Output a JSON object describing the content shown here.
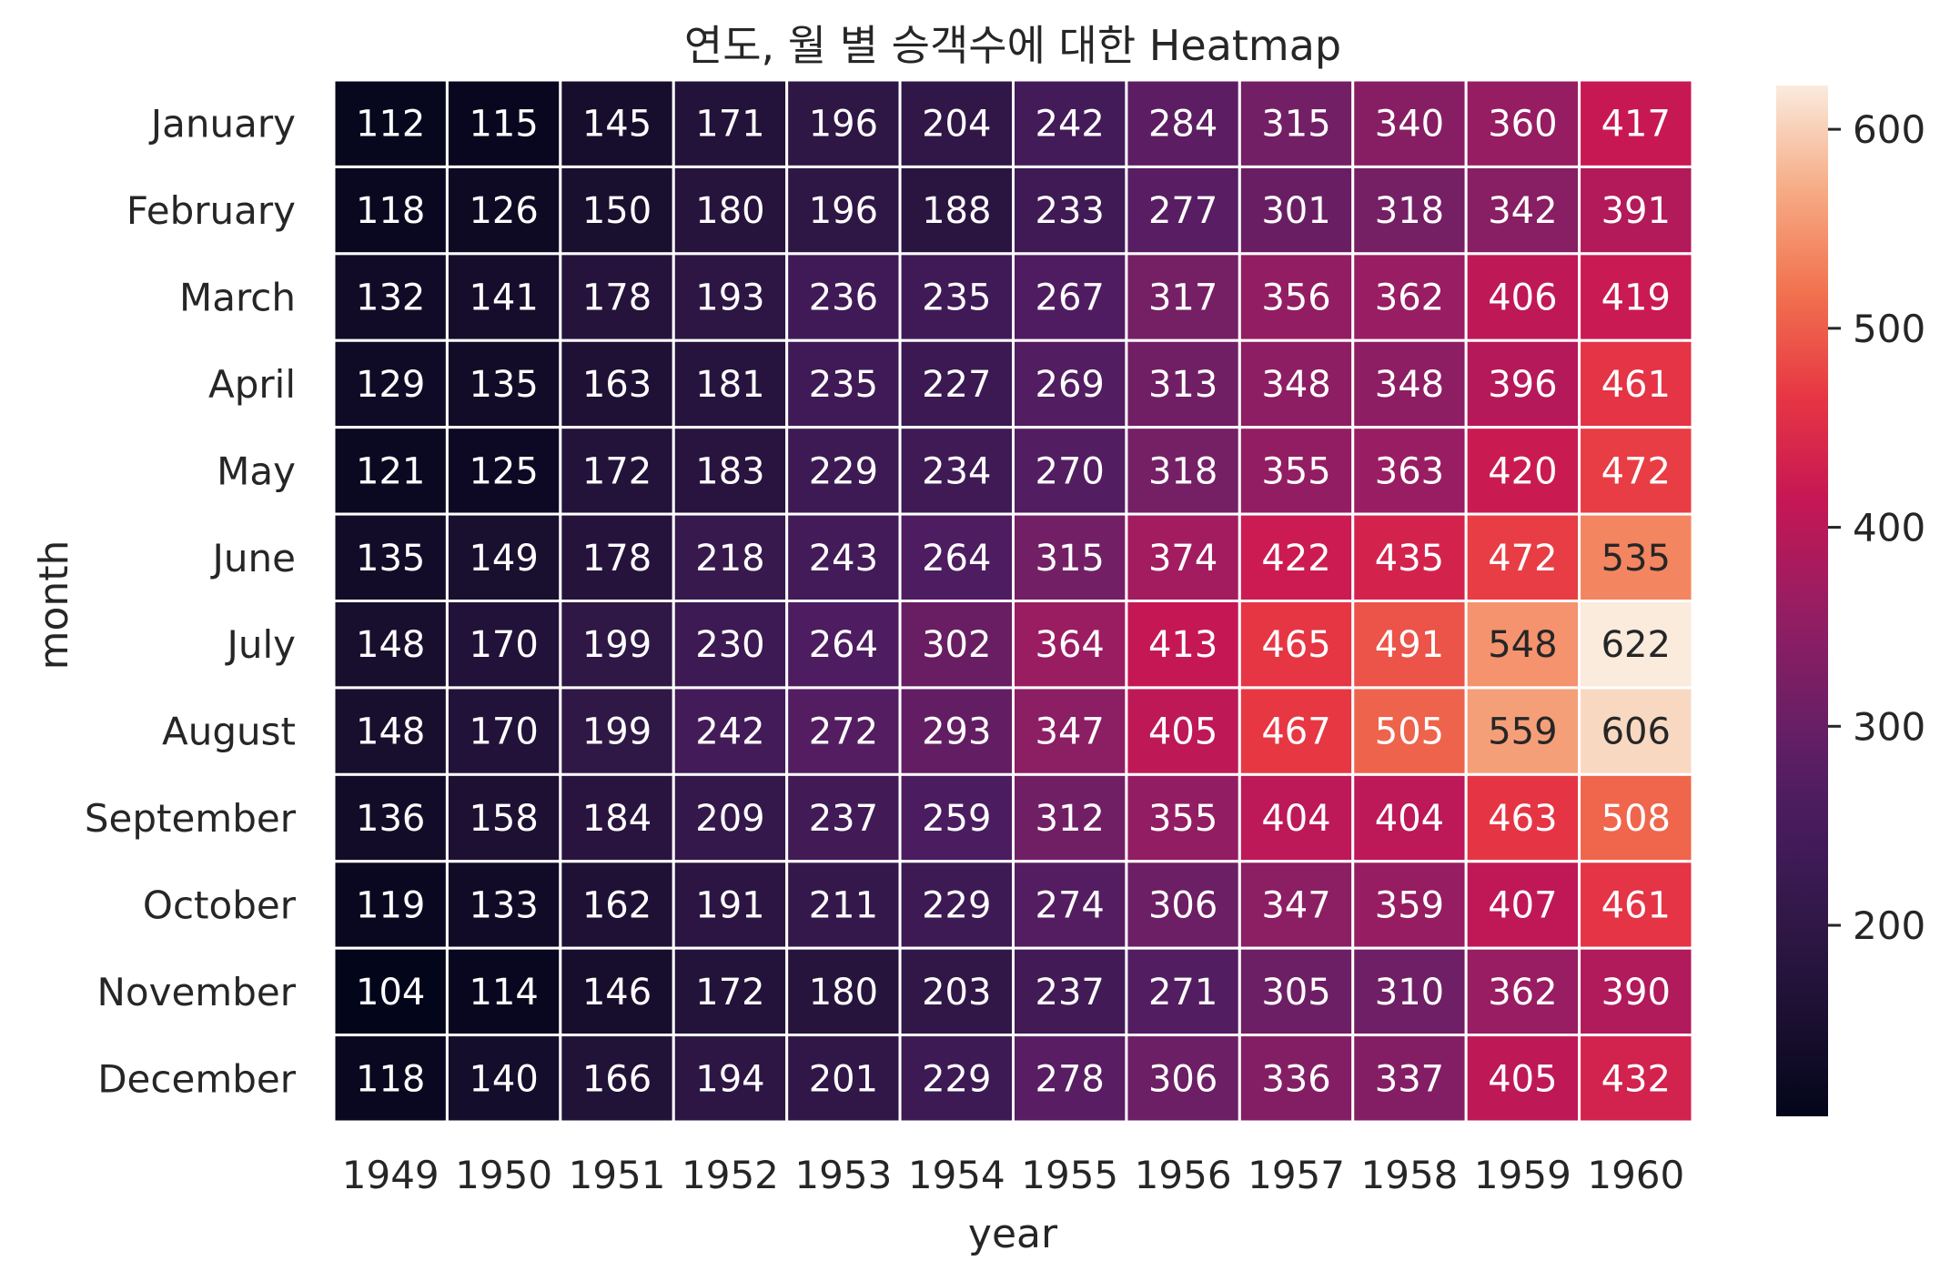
{
  "chart_data": {
    "type": "heatmap",
    "title": "연도, 월 별 승객수에 대한 Heatmap",
    "xlabel": "year",
    "ylabel": "month",
    "x_categories": [
      "1949",
      "1950",
      "1951",
      "1952",
      "1953",
      "1954",
      "1955",
      "1956",
      "1957",
      "1958",
      "1959",
      "1960"
    ],
    "y_categories": [
      "January",
      "February",
      "March",
      "April",
      "May",
      "June",
      "July",
      "August",
      "September",
      "October",
      "November",
      "December"
    ],
    "values": [
      [
        112,
        115,
        145,
        171,
        196,
        204,
        242,
        284,
        315,
        340,
        360,
        417
      ],
      [
        118,
        126,
        150,
        180,
        196,
        188,
        233,
        277,
        301,
        318,
        342,
        391
      ],
      [
        132,
        141,
        178,
        193,
        236,
        235,
        267,
        317,
        356,
        362,
        406,
        419
      ],
      [
        129,
        135,
        163,
        181,
        235,
        227,
        269,
        313,
        348,
        348,
        396,
        461
      ],
      [
        121,
        125,
        172,
        183,
        229,
        234,
        270,
        318,
        355,
        363,
        420,
        472
      ],
      [
        135,
        149,
        178,
        218,
        243,
        264,
        315,
        374,
        422,
        435,
        472,
        535
      ],
      [
        148,
        170,
        199,
        230,
        264,
        302,
        364,
        413,
        465,
        491,
        548,
        622
      ],
      [
        148,
        170,
        199,
        242,
        272,
        293,
        347,
        405,
        467,
        505,
        559,
        606
      ],
      [
        136,
        158,
        184,
        209,
        237,
        259,
        312,
        355,
        404,
        404,
        463,
        508
      ],
      [
        119,
        133,
        162,
        191,
        211,
        229,
        274,
        306,
        347,
        359,
        407,
        461
      ],
      [
        104,
        114,
        146,
        172,
        180,
        203,
        237,
        271,
        305,
        310,
        362,
        390
      ],
      [
        118,
        140,
        166,
        194,
        201,
        229,
        278,
        306,
        336,
        337,
        405,
        432
      ]
    ],
    "annotations": true,
    "colormap": "rocket",
    "colorbar_range": [
      104,
      622
    ],
    "colorbar_ticks": [
      200,
      300,
      400,
      500,
      600
    ],
    "cell_separator_color": "#ffffff"
  }
}
